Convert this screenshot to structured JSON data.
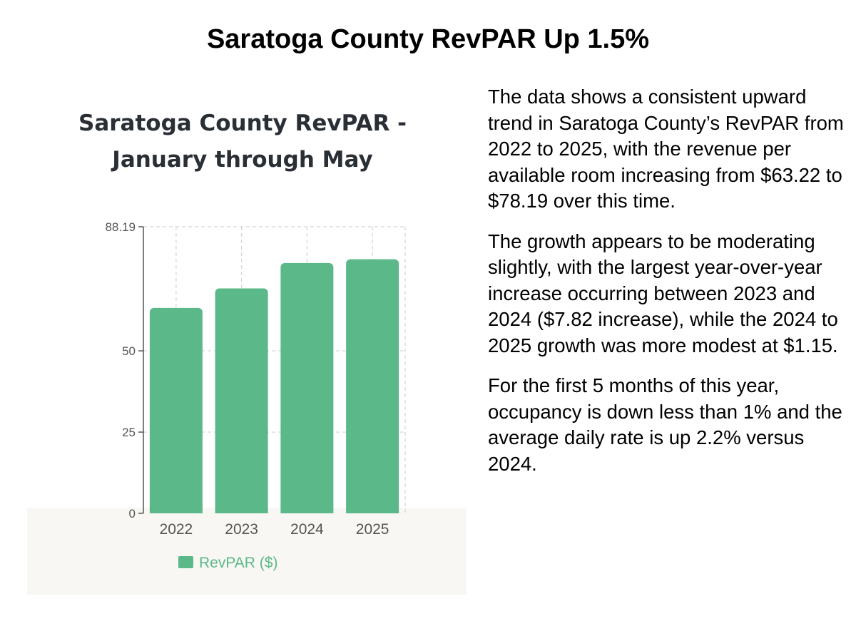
{
  "page": {
    "title": "Saratoga County RevPAR Up 1.5%"
  },
  "analysis": {
    "paragraphs": [
      "The data shows a consistent upward trend in Saratoga County’s RevPAR from 2022 to 2025, with the revenue per available room increasing from $63.22 to $78.19 over this time.",
      "The growth appears to be moderating slightly, with the largest year-over-year increase occurring between 2023 and 2024 ($7.82 increase), while the 2024 to 2025 growth was more modest at $1.15.",
      "For the first 5 months of this year, occupancy is down less than 1% and the average daily rate is up 2.2% versus 2024."
    ]
  },
  "chart_data": {
    "type": "bar",
    "title": "Saratoga County RevPAR - January through May",
    "categories": [
      "2022",
      "2023",
      "2024",
      "2025"
    ],
    "series": [
      {
        "name": "RevPAR ($)",
        "values": [
          63.22,
          69.22,
          77.04,
          78.19
        ],
        "color": "#5bb888"
      }
    ],
    "ylim": [
      0,
      88.19
    ],
    "yticks": [
      {
        "value": 0,
        "label": "0"
      },
      {
        "value": 25,
        "label": "25"
      },
      {
        "value": 50,
        "label": "50"
      },
      {
        "value": 88.19,
        "label": "88.19"
      }
    ],
    "grid": true,
    "gridline_color": "#d3d3d3",
    "axis_color": "#555555",
    "tick_label_color": "#555555",
    "legend_position": "bottom-center"
  }
}
